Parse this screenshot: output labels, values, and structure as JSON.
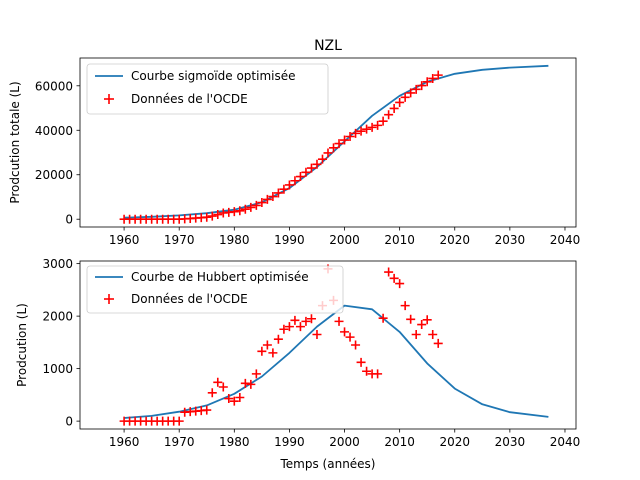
{
  "figure": {
    "title": "NZL"
  },
  "colors": {
    "curve": "#1f77b4",
    "markers": "#ff0000",
    "axes": "#000000",
    "background": "#ffffff",
    "legend_border": "#cccccc"
  },
  "chart_data": [
    {
      "type": "line",
      "title": "NZL",
      "xlabel": "",
      "ylabel": "Prodcution totale (L)",
      "xlim": [
        1952,
        2042
      ],
      "ylim": [
        -3500,
        72500
      ],
      "xticks": [
        1960,
        1970,
        1980,
        1990,
        2000,
        2010,
        2020,
        2030,
        2040
      ],
      "yticks": [
        0,
        20000,
        40000,
        60000
      ],
      "grid": false,
      "legend_position": "upper-left",
      "series": [
        {
          "name": "Courbe sigmoïde optimisée",
          "kind": "line",
          "color": "#1f77b4",
          "x": [
            1960,
            1965,
            1970,
            1975,
            1980,
            1985,
            1990,
            1995,
            2000,
            2005,
            2010,
            2015,
            2020,
            2025,
            2030,
            2037
          ],
          "y": [
            700,
            1100,
            1700,
            2700,
            4300,
            7600,
            14000,
            23500,
            35000,
            46500,
            55500,
            61800,
            65400,
            67200,
            68200,
            69000
          ]
        },
        {
          "name": "Données de l'OCDE",
          "kind": "scatter",
          "marker": "+",
          "color": "#ff0000",
          "x": [
            1960,
            1961,
            1962,
            1963,
            1964,
            1965,
            1966,
            1967,
            1968,
            1969,
            1970,
            1971,
            1972,
            1973,
            1974,
            1975,
            1976,
            1977,
            1978,
            1979,
            1980,
            1981,
            1982,
            1983,
            1984,
            1985,
            1986,
            1987,
            1988,
            1989,
            1990,
            1991,
            1992,
            1993,
            1994,
            1995,
            1996,
            1997,
            1998,
            1999,
            2000,
            2001,
            2002,
            2003,
            2004,
            2005,
            2006,
            2007,
            2008,
            2009,
            2010,
            2011,
            2012,
            2013,
            2014,
            2015,
            2016,
            2017
          ],
          "y": [
            0,
            0,
            0,
            0,
            0,
            0,
            0,
            0,
            0,
            0,
            0,
            150,
            300,
            500,
            700,
            900,
            1400,
            2100,
            2800,
            3100,
            3400,
            3800,
            4500,
            5300,
            6200,
            7500,
            8900,
            10200,
            11800,
            13500,
            15400,
            17300,
            19200,
            21100,
            23000,
            24700,
            27000,
            29800,
            32100,
            34000,
            35600,
            37200,
            38600,
            39600,
            40500,
            41300,
            42200,
            44100,
            47000,
            49800,
            52500,
            54800,
            56800,
            58400,
            60100,
            61800,
            63300,
            64800
          ]
        }
      ]
    },
    {
      "type": "line",
      "title": "",
      "xlabel": "Temps (années)",
      "ylabel": "Prodcution (L)",
      "xlim": [
        1952,
        2042
      ],
      "ylim": [
        -150,
        3050
      ],
      "xticks": [
        1960,
        1970,
        1980,
        1990,
        2000,
        2010,
        2020,
        2030,
        2040
      ],
      "yticks": [
        0,
        1000,
        2000,
        3000
      ],
      "grid": false,
      "legend_position": "upper-left",
      "series": [
        {
          "name": "Courbe de Hubbert optimisée",
          "kind": "line",
          "color": "#1f77b4",
          "x": [
            1960,
            1965,
            1970,
            1975,
            1980,
            1985,
            1990,
            1995,
            2000,
            2005,
            2010,
            2015,
            2020,
            2025,
            2030,
            2037
          ],
          "y": [
            60,
            100,
            180,
            300,
            520,
            850,
            1300,
            1800,
            2200,
            2130,
            1700,
            1100,
            620,
            320,
            170,
            80
          ]
        },
        {
          "name": "Données de l'OCDE",
          "kind": "scatter",
          "marker": "+",
          "color": "#ff0000",
          "x": [
            1960,
            1961,
            1962,
            1963,
            1964,
            1965,
            1966,
            1967,
            1968,
            1969,
            1970,
            1971,
            1972,
            1973,
            1974,
            1975,
            1976,
            1977,
            1978,
            1979,
            1980,
            1981,
            1982,
            1983,
            1984,
            1985,
            1986,
            1987,
            1988,
            1989,
            1990,
            1991,
            1992,
            1993,
            1994,
            1995,
            1996,
            1997,
            1998,
            1999,
            2000,
            2001,
            2002,
            2003,
            2004,
            2005,
            2006,
            2007,
            2008,
            2009,
            2010,
            2011,
            2012,
            2013,
            2014,
            2015,
            2016,
            2017
          ],
          "y": [
            0,
            0,
            0,
            0,
            0,
            0,
            0,
            0,
            0,
            0,
            0,
            170,
            180,
            190,
            200,
            210,
            540,
            740,
            650,
            430,
            380,
            450,
            720,
            700,
            900,
            1330,
            1450,
            1300,
            1560,
            1750,
            1800,
            1920,
            1800,
            1900,
            1950,
            1650,
            2200,
            2900,
            2300,
            1900,
            1700,
            1600,
            1450,
            1120,
            950,
            900,
            900,
            1960,
            2840,
            2720,
            2620,
            2200,
            1940,
            1650,
            1840,
            1930,
            1650,
            1480
          ]
        }
      ]
    }
  ]
}
